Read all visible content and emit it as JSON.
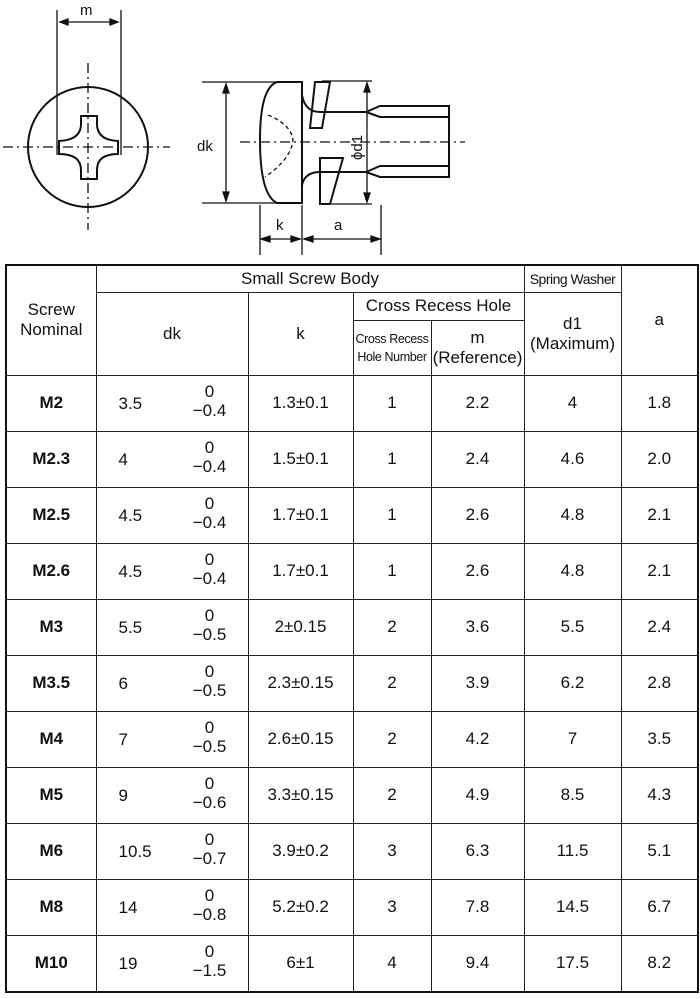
{
  "drawing": {
    "labels": {
      "m": "m",
      "dk": "dk",
      "d1": "ϕd1",
      "k": "k",
      "a": "a"
    }
  },
  "table": {
    "headers": {
      "screw_nominal": "Screw Nominal",
      "small_screw_body": "Small Screw Body",
      "spring_washer": "Spring Washer",
      "a": "a",
      "dk": "dk",
      "k": "k",
      "cross_recess_hole": "Cross Recess Hole",
      "cross_recess_hole_number": "Cross Recess Hole Number",
      "m": "m",
      "m_sub": "(Reference)",
      "d1": "d1",
      "d1_sub": "(Maximum)"
    },
    "rows": [
      {
        "nominal": "M2",
        "dk": "3.5",
        "dk_upper": "0",
        "dk_lower": "−0.4",
        "k": "1.3±0.1",
        "hole": "1",
        "m": "2.2",
        "d1": "4",
        "a": "1.8"
      },
      {
        "nominal": "M2.3",
        "dk": "4",
        "dk_upper": "0",
        "dk_lower": "−0.4",
        "k": "1.5±0.1",
        "hole": "1",
        "m": "2.4",
        "d1": "4.6",
        "a": "2.0"
      },
      {
        "nominal": "M2.5",
        "dk": "4.5",
        "dk_upper": "0",
        "dk_lower": "−0.4",
        "k": "1.7±0.1",
        "hole": "1",
        "m": "2.6",
        "d1": "4.8",
        "a": "2.1"
      },
      {
        "nominal": "M2.6",
        "dk": "4.5",
        "dk_upper": "0",
        "dk_lower": "−0.4",
        "k": "1.7±0.1",
        "hole": "1",
        "m": "2.6",
        "d1": "4.8",
        "a": "2.1"
      },
      {
        "nominal": "M3",
        "dk": "5.5",
        "dk_upper": "0",
        "dk_lower": "−0.5",
        "k": "2±0.15",
        "hole": "2",
        "m": "3.6",
        "d1": "5.5",
        "a": "2.4"
      },
      {
        "nominal": "M3.5",
        "dk": "6",
        "dk_upper": "0",
        "dk_lower": "−0.5",
        "k": "2.3±0.15",
        "hole": "2",
        "m": "3.9",
        "d1": "6.2",
        "a": "2.8"
      },
      {
        "nominal": "M4",
        "dk": "7",
        "dk_upper": "0",
        "dk_lower": "−0.5",
        "k": "2.6±0.15",
        "hole": "2",
        "m": "4.2",
        "d1": "7",
        "a": "3.5"
      },
      {
        "nominal": "M5",
        "dk": "9",
        "dk_upper": "0",
        "dk_lower": "−0.6",
        "k": "3.3±0.15",
        "hole": "2",
        "m": "4.9",
        "d1": "8.5",
        "a": "4.3"
      },
      {
        "nominal": "M6",
        "dk": "10.5",
        "dk_upper": "0",
        "dk_lower": "−0.7",
        "k": "3.9±0.2",
        "hole": "3",
        "m": "6.3",
        "d1": "11.5",
        "a": "5.1"
      },
      {
        "nominal": "M8",
        "dk": "14",
        "dk_upper": "0",
        "dk_lower": "−0.8",
        "k": "5.2±0.2",
        "hole": "3",
        "m": "7.8",
        "d1": "14.5",
        "a": "6.7"
      },
      {
        "nominal": "M10",
        "dk": "19",
        "dk_upper": "0",
        "dk_lower": "−1.5",
        "k": "6±1",
        "hole": "4",
        "m": "9.4",
        "d1": "17.5",
        "a": "8.2"
      }
    ]
  }
}
